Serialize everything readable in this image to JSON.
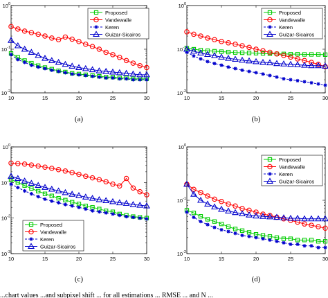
{
  "caption_text": "...chart values ...and subpixel shift ... for all estimations ... RMSE ... and N ...",
  "chart_data": [
    {
      "type": "line",
      "panel_label": "(a)",
      "x": [
        10,
        11,
        12,
        13,
        14,
        15,
        16,
        17,
        18,
        19,
        20,
        21,
        22,
        23,
        24,
        25,
        26,
        27,
        28,
        29,
        30
      ],
      "xticks": [
        10,
        15,
        20,
        25,
        30
      ],
      "ylim": [
        0.01,
        1
      ],
      "yscale": "log",
      "ytick_labels": [
        "10^0",
        "10^-1",
        "10^-2"
      ],
      "legend_position": "top-right",
      "series": [
        {
          "name": "Proposed",
          "color": "#00cc00",
          "marker": "square",
          "values": [
            0.08,
            0.065,
            0.055,
            0.048,
            0.042,
            0.038,
            0.035,
            0.032,
            0.03,
            0.028,
            0.027,
            0.026,
            0.025,
            0.024,
            0.023,
            0.023,
            0.022,
            0.022,
            0.021,
            0.021,
            0.021
          ]
        },
        {
          "name": "Vandewalle",
          "color": "#ff0000",
          "marker": "circle",
          "values": [
            0.33,
            0.29,
            0.26,
            0.24,
            0.22,
            0.2,
            0.18,
            0.165,
            0.19,
            0.17,
            0.15,
            0.13,
            0.115,
            0.1,
            0.085,
            0.075,
            0.065,
            0.055,
            0.048,
            0.042,
            0.038
          ]
        },
        {
          "name": "Keren",
          "color": "#0000cc",
          "marker": "star",
          "values": [
            0.075,
            0.058,
            0.05,
            0.043,
            0.039,
            0.036,
            0.033,
            0.031,
            0.029,
            0.027,
            0.026,
            0.025,
            0.024,
            0.023,
            0.022,
            0.022,
            0.021,
            0.021,
            0.02,
            0.02,
            0.02
          ]
        },
        {
          "name": "Guizar-Sicairos",
          "color": "#0000cc",
          "marker": "triangle",
          "values": [
            0.16,
            0.12,
            0.1,
            0.085,
            0.072,
            0.062,
            0.055,
            0.05,
            0.045,
            0.041,
            0.038,
            0.036,
            0.034,
            0.032,
            0.031,
            0.03,
            0.029,
            0.028,
            0.027,
            0.026,
            0.026
          ]
        }
      ]
    },
    {
      "type": "line",
      "panel_label": "(b)",
      "x": [
        10,
        11,
        12,
        13,
        14,
        15,
        16,
        17,
        18,
        19,
        20,
        21,
        22,
        23,
        24,
        25,
        26,
        27,
        28,
        29,
        30
      ],
      "xticks": [
        10,
        15,
        20,
        25,
        30
      ],
      "ylim": [
        0.01,
        1
      ],
      "yscale": "log",
      "ytick_labels": [
        "10^0",
        "10^-1",
        "10^-2"
      ],
      "legend_position": "top-right",
      "series": [
        {
          "name": "Proposed",
          "color": "#00cc00",
          "marker": "square",
          "values": [
            0.105,
            0.1,
            0.095,
            0.092,
            0.09,
            0.088,
            0.086,
            0.084,
            0.083,
            0.082,
            0.081,
            0.08,
            0.079,
            0.078,
            0.078,
            0.077,
            0.077,
            0.076,
            0.076,
            0.076,
            0.075
          ]
        },
        {
          "name": "Vandewalle",
          "color": "#ff0000",
          "marker": "circle",
          "values": [
            0.25,
            0.22,
            0.2,
            0.18,
            0.165,
            0.15,
            0.14,
            0.13,
            0.12,
            0.11,
            0.1,
            0.092,
            0.085,
            0.078,
            0.072,
            0.066,
            0.06,
            0.055,
            0.05,
            0.045,
            0.04
          ]
        },
        {
          "name": "Keren",
          "color": "#0000cc",
          "marker": "star",
          "values": [
            0.085,
            0.07,
            0.06,
            0.052,
            0.047,
            0.043,
            0.039,
            0.036,
            0.033,
            0.031,
            0.029,
            0.027,
            0.025,
            0.023,
            0.021,
            0.02,
            0.019,
            0.018,
            0.017,
            0.016,
            0.015
          ]
        },
        {
          "name": "Guizar-Sicairos",
          "color": "#0000cc",
          "marker": "triangle",
          "values": [
            0.1,
            0.09,
            0.082,
            0.076,
            0.071,
            0.066,
            0.062,
            0.059,
            0.056,
            0.054,
            0.052,
            0.05,
            0.049,
            0.047,
            0.046,
            0.045,
            0.044,
            0.043,
            0.042,
            0.042,
            0.041
          ]
        }
      ]
    },
    {
      "type": "line",
      "panel_label": "(c)",
      "x": [
        10,
        11,
        12,
        13,
        14,
        15,
        16,
        17,
        18,
        19,
        20,
        21,
        22,
        23,
        24,
        25,
        26,
        27,
        28,
        29,
        30
      ],
      "xticks": [
        10,
        15,
        20,
        25,
        30
      ],
      "ylim": [
        0.001,
        1
      ],
      "yscale": "log",
      "ytick_labels": [
        "10^0",
        "10^-1",
        "10^-2",
        "10^-3"
      ],
      "legend_position": "bottom-left",
      "series": [
        {
          "name": "Proposed",
          "color": "#00cc00",
          "marker": "square",
          "values": [
            0.12,
            0.1,
            0.082,
            0.068,
            0.057,
            0.048,
            0.042,
            0.036,
            0.032,
            0.028,
            0.025,
            0.022,
            0.02,
            0.018,
            0.016,
            0.015,
            0.013,
            0.012,
            0.011,
            0.0105,
            0.01
          ]
        },
        {
          "name": "Vandewalle",
          "color": "#ff0000",
          "marker": "circle",
          "values": [
            0.35,
            0.34,
            0.33,
            0.31,
            0.29,
            0.27,
            0.25,
            0.23,
            0.21,
            0.19,
            0.17,
            0.15,
            0.135,
            0.12,
            0.105,
            0.09,
            0.08,
            0.13,
            0.07,
            0.055,
            0.045
          ]
        },
        {
          "name": "Keren",
          "color": "#0000cc",
          "marker": "star",
          "values": [
            0.09,
            0.072,
            0.058,
            0.048,
            0.04,
            0.034,
            0.03,
            0.027,
            0.024,
            0.022,
            0.02,
            0.018,
            0.016,
            0.015,
            0.014,
            0.013,
            0.012,
            0.011,
            0.0105,
            0.01,
            0.0095
          ]
        },
        {
          "name": "Guizar-Sicairos",
          "color": "#0000cc",
          "marker": "triangle",
          "values": [
            0.15,
            0.13,
            0.11,
            0.095,
            0.083,
            0.073,
            0.065,
            0.058,
            0.052,
            0.047,
            0.043,
            0.039,
            0.036,
            0.033,
            0.031,
            0.029,
            0.027,
            0.026,
            0.024,
            0.023,
            0.022
          ]
        }
      ]
    },
    {
      "type": "line",
      "panel_label": "(d)",
      "x": [
        10,
        11,
        12,
        13,
        14,
        15,
        16,
        17,
        18,
        19,
        20,
        21,
        22,
        23,
        24,
        25,
        26,
        27,
        28,
        29,
        30
      ],
      "xticks": [
        10,
        15,
        20,
        25,
        30
      ],
      "ylim": [
        0.01,
        1
      ],
      "yscale": "log",
      "ytick_labels": [
        "10^0",
        "10^-1",
        "10^-2"
      ],
      "legend_position": "top-right",
      "series": [
        {
          "name": "Proposed",
          "color": "#00cc00",
          "marker": "square",
          "values": [
            0.065,
            0.058,
            0.05,
            0.044,
            0.04,
            0.036,
            0.032,
            0.029,
            0.027,
            0.025,
            0.023,
            0.022,
            0.021,
            0.02,
            0.019,
            0.019,
            0.018,
            0.018,
            0.018,
            0.017,
            0.017
          ]
        },
        {
          "name": "Vandewalle",
          "color": "#ff0000",
          "marker": "circle",
          "values": [
            0.2,
            0.16,
            0.14,
            0.12,
            0.105,
            0.095,
            0.085,
            0.078,
            0.07,
            0.065,
            0.06,
            0.055,
            0.052,
            0.048,
            0.045,
            0.042,
            0.039,
            0.036,
            0.034,
            0.032,
            0.03
          ]
        },
        {
          "name": "Keren",
          "color": "#0000cc",
          "marker": "star",
          "values": [
            0.06,
            0.048,
            0.04,
            0.035,
            0.031,
            0.028,
            0.026,
            0.024,
            0.022,
            0.021,
            0.02,
            0.019,
            0.018,
            0.017,
            0.016,
            0.015,
            0.015,
            0.014,
            0.014,
            0.013,
            0.013
          ]
        },
        {
          "name": "Guizar-Sicairos",
          "color": "#0000cc",
          "marker": "triangle",
          "values": [
            0.2,
            0.13,
            0.1,
            0.085,
            0.075,
            0.068,
            0.063,
            0.059,
            0.056,
            0.053,
            0.051,
            0.05,
            0.049,
            0.048,
            0.047,
            0.046,
            0.046,
            0.045,
            0.045,
            0.045,
            0.045
          ]
        }
      ]
    }
  ]
}
